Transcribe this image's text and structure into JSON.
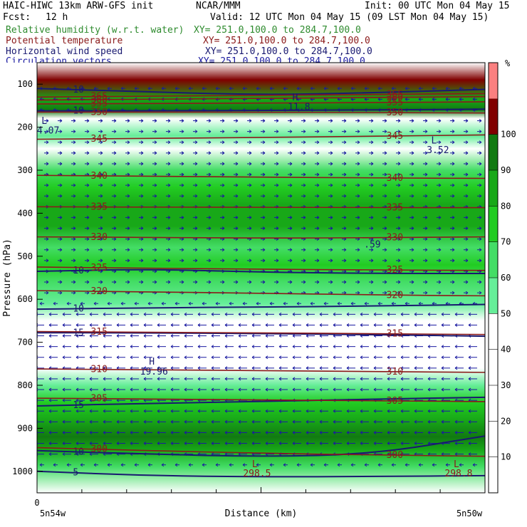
{
  "header": {
    "model": "HAIC-HIWC 13km ARW-GFS init",
    "org": "NCAR/MMM",
    "init": "Init: 00 UTC Mon 04 May 15",
    "fcst_label": "Fcst:",
    "fcst_value": "12 h",
    "valid": "Valid: 12 UTC Mon 04 May 15 (09 LST Mon 04 May 15)"
  },
  "fields": [
    {
      "name": "Relative humidity (w.r.t. water)",
      "xy": "XY= 251.0,100.0 to 284.7,100.0",
      "color": "#2e8b2e"
    },
    {
      "name": "Potential temperature",
      "xy": "XY= 251.0,100.0 to 284.7,100.0",
      "color": "#8b1a1a"
    },
    {
      "name": "Horizontal wind speed",
      "xy": "XY= 251.0,100.0 to 284.7,100.0",
      "color": "#191970"
    },
    {
      "name": "Circulation vectors",
      "xy": "XY= 251.0,100.0 to 284.7,100.0",
      "color": "#1a1aa0"
    }
  ],
  "chart_data": {
    "type": "heatmap",
    "ylabel": "Pressure (hPa)",
    "xlabel": "Distance (km)",
    "x_start_label": "5n54w",
    "x_end_label": "5n50w",
    "x_zero_label": "0",
    "ylim": [
      1050,
      50
    ],
    "yticks": [
      100,
      200,
      300,
      400,
      500,
      600,
      700,
      800,
      900,
      1000
    ],
    "colorbar": {
      "unit": "%",
      "levels": [
        10,
        20,
        30,
        40,
        50,
        60,
        70,
        80,
        90,
        100
      ],
      "bins": [
        {
          "from": 0,
          "to": 50,
          "color": "#ffffff"
        },
        {
          "from": 50,
          "to": 60,
          "color": "#66ee99"
        },
        {
          "from": 60,
          "to": 70,
          "color": "#44dd66"
        },
        {
          "from": 70,
          "to": 80,
          "color": "#22cc22"
        },
        {
          "from": 80,
          "to": 90,
          "color": "#18a818"
        },
        {
          "from": 90,
          "to": 100,
          "color": "#117a11"
        },
        {
          "from": 100,
          "to": 110,
          "color": "#800000"
        },
        {
          "from": 110,
          "to": 120,
          "color": "#fa8080"
        }
      ]
    },
    "rh_profile": [
      {
        "p": 50,
        "rh": 0
      },
      {
        "p": 90,
        "rh": 100
      },
      {
        "p": 135,
        "rh": 85
      },
      {
        "p": 160,
        "rh": 92
      },
      {
        "p": 180,
        "rh": 40
      },
      {
        "p": 220,
        "rh": 55
      },
      {
        "p": 250,
        "rh": 40
      },
      {
        "p": 300,
        "rh": 62
      },
      {
        "p": 340,
        "rh": 78
      },
      {
        "p": 380,
        "rh": 88
      },
      {
        "p": 430,
        "rh": 82
      },
      {
        "p": 480,
        "rh": 66
      },
      {
        "p": 520,
        "rh": 76
      },
      {
        "p": 560,
        "rh": 64
      },
      {
        "p": 610,
        "rh": 56
      },
      {
        "p": 650,
        "rh": 48
      },
      {
        "p": 700,
        "rh": 35
      },
      {
        "p": 760,
        "rh": 38
      },
      {
        "p": 800,
        "rh": 56
      },
      {
        "p": 840,
        "rh": 72
      },
      {
        "p": 880,
        "rh": 85
      },
      {
        "p": 920,
        "rh": 94
      },
      {
        "p": 950,
        "rh": 86
      },
      {
        "p": 990,
        "rh": 64
      },
      {
        "p": 1050,
        "rh": 0
      }
    ],
    "theta_contours": [
      {
        "label": "365",
        "p": [
          130,
          128,
          126,
          124,
          122
        ]
      },
      {
        "label": "360",
        "p": [
          137,
          135,
          133,
          131,
          129
        ]
      },
      {
        "label": "355",
        "p": [
          146,
          145,
          144,
          143,
          141
        ]
      },
      {
        "label": "350",
        "p": [
          165,
          165,
          165,
          166,
          167
        ]
      },
      {
        "label": "345",
        "p": [
          228,
          226,
          224,
          221,
          218
        ]
      },
      {
        "label": "340",
        "p": [
          312,
          314,
          316,
          318,
          319
        ]
      },
      {
        "label": "335",
        "p": [
          385,
          386,
          386,
          387,
          387
        ]
      },
      {
        "label": "330",
        "p": [
          455,
          456,
          458,
          457,
          455
        ]
      },
      {
        "label": "325",
        "p": [
          525,
          528,
          530,
          532,
          533
        ]
      },
      {
        "label": "320",
        "p": [
          580,
          583,
          586,
          590,
          592
        ]
      },
      {
        "label": "315",
        "p": [
          675,
          677,
          678,
          680,
          682
        ]
      },
      {
        "label": "310",
        "p": [
          762,
          764,
          766,
          768,
          770
        ]
      },
      {
        "label": "305",
        "p": [
          830,
          832,
          834,
          836,
          838
        ]
      },
      {
        "label": "300",
        "p": [
          945,
          952,
          958,
          962,
          965
        ]
      }
    ],
    "wind_contours": [
      {
        "label": "10",
        "p": [
          110,
          118,
          125,
          120,
          112
        ]
      },
      {
        "label": "10",
        "p": [
          162,
          162,
          161,
          160,
          158
        ]
      },
      {
        "label": "10",
        "p": [
          535,
          530,
          537,
          540,
          540
        ]
      },
      {
        "label": "10",
        "p": [
          623,
          620,
          618,
          616,
          612
        ]
      },
      {
        "label": "15",
        "p": [
          678,
          678,
          680,
          682,
          686
        ]
      },
      {
        "label": "15",
        "p": [
          848,
          842,
          838,
          832,
          828
        ]
      },
      {
        "label": "10",
        "p": [
          952,
          960,
          966,
          960,
          918
        ]
      },
      {
        "label": "5",
        "p": [
          1000,
          1010,
          1013,
          1012,
          1010
        ]
      }
    ],
    "annotations": [
      {
        "text": "L",
        "x": 0.01,
        "p": 192,
        "color": "#191970"
      },
      {
        "text": "4.07",
        "x": 0.0,
        "p": 215,
        "color": "#191970"
      },
      {
        "text": "L",
        "x": 0.88,
        "p": 238,
        "color": "#191970"
      },
      {
        "text": "3.52",
        "x": 0.87,
        "p": 260,
        "color": "#191970"
      },
      {
        "text": "H",
        "x": 0.57,
        "p": 138,
        "color": "#191970"
      },
      {
        "text": "11.8",
        "x": 0.56,
        "p": 160,
        "color": "#191970"
      },
      {
        "text": "H",
        "x": 0.25,
        "p": 752,
        "color": "#191970"
      },
      {
        "text": "19.96",
        "x": 0.23,
        "p": 775,
        "color": "#191970"
      },
      {
        "text": ".59",
        "x": 0.73,
        "p": 480,
        "color": "#191970"
      },
      {
        "text": "L",
        "x": 0.48,
        "p": 990,
        "color": "#8b1a1a"
      },
      {
        "text": "298.5",
        "x": 0.46,
        "p": 1012,
        "color": "#8b1a1a"
      },
      {
        "text": "L",
        "x": 0.93,
        "p": 990,
        "color": "#8b1a1a"
      },
      {
        "text": "298.8",
        "x": 0.91,
        "p": 1012,
        "color": "#8b1a1a"
      }
    ]
  }
}
